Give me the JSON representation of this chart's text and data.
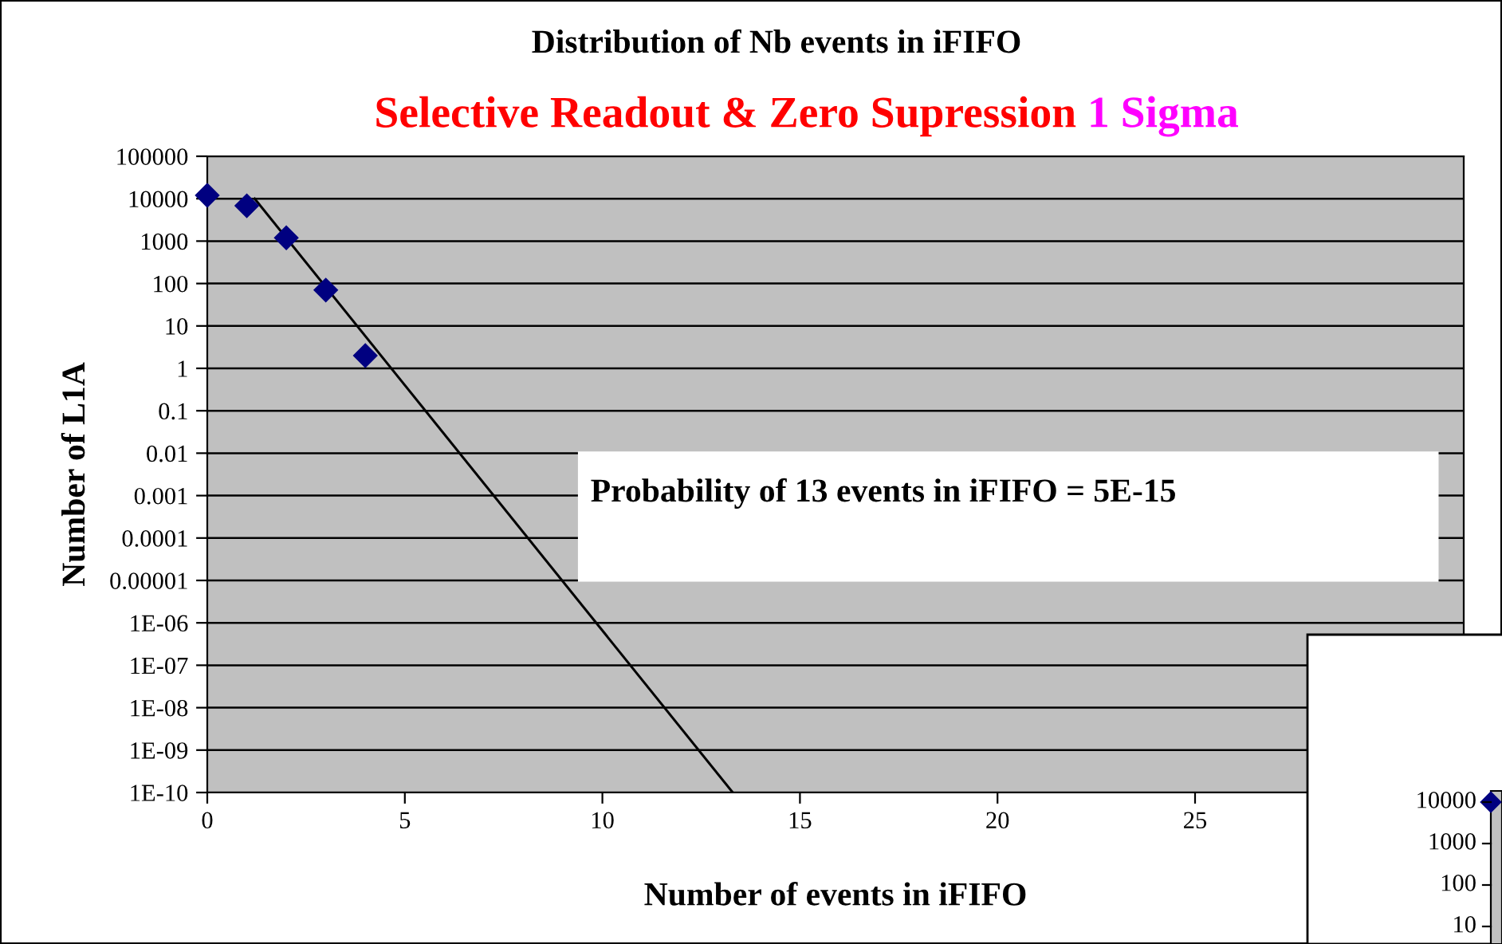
{
  "chart_data": [
    {
      "type": "scatter",
      "title": "Distribution of Nb events in iFIFO",
      "subtitle": "Selective Readout & Zero Supression",
      "xlabel": "Number of events in iFIFO",
      "ylabel": "Number of L1A",
      "annotations": [
        "1 Sigma",
        "Probability of 13 events in iFIFO = 5E-15"
      ],
      "series": [
        {
          "type": "scatter",
          "color": "#000080",
          "x": [
            0,
            1,
            2,
            3,
            4
          ],
          "values": [
            12000,
            6800,
            1200,
            70,
            2
          ],
          "marker": "diamond"
        },
        {
          "type": "line",
          "color": "#000000",
          "x": [
            1.2,
            13.3
          ],
          "values": [
            10000,
            1e-10
          ],
          "marker": "none"
        }
      ],
      "log": "y",
      "xlim": [
        0,
        31.8
      ],
      "xticks": [
        0,
        5,
        10,
        15,
        20,
        25
      ],
      "ylim": [
        1e-10,
        100000
      ],
      "yticks": [
        100000,
        10000,
        1000,
        100,
        10,
        1,
        0.1,
        0.01,
        0.001,
        0.0001,
        {
          "value": 1e-05,
          "label": "0.00001"
        },
        {
          "value": 1e-06,
          "label": "1E-06"
        },
        {
          "value": 1e-07,
          "label": "1E-07"
        },
        {
          "value": 1e-08,
          "label": "1E-08"
        },
        {
          "value": 1e-09,
          "label": "1E-09"
        },
        {
          "value": 1e-10,
          "label": "1E-10"
        }
      ],
      "grid": "y",
      "legend": false
    },
    {
      "type": "other",
      "annotations": [
        "10000",
        "1000",
        "100",
        "10"
      ]
    }
  ]
}
